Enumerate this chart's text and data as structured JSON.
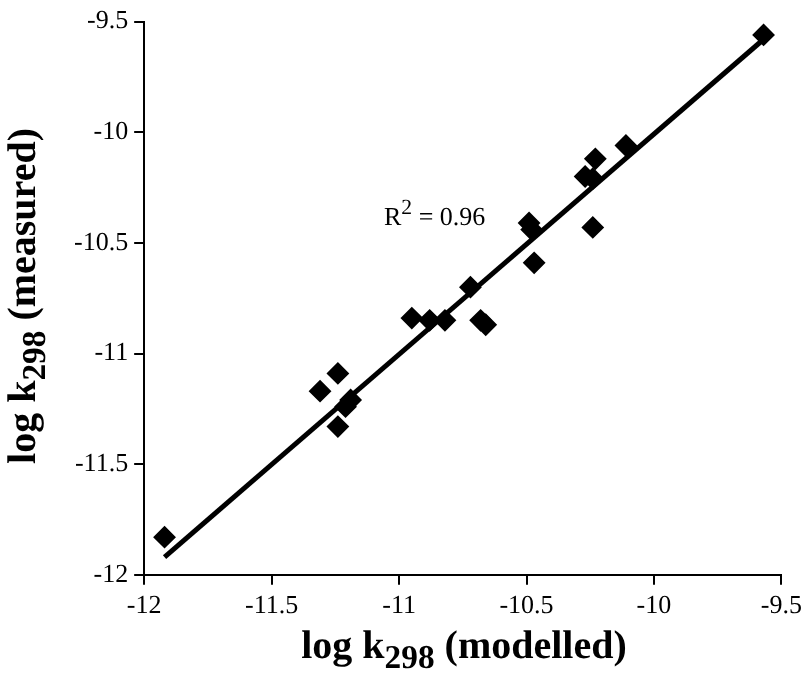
{
  "chart_data": {
    "type": "scatter",
    "xlabel": "log k$_{298}$ (modelled)",
    "ylabel": "log k$_{298}$ (measured)",
    "x": [
      -9.57,
      -10.11,
      -10.23,
      -10.27,
      -10.24,
      -10.24,
      -10.49,
      -10.48,
      -10.47,
      -10.72,
      -10.95,
      -10.88,
      -10.82,
      -10.68,
      -10.66,
      -11.24,
      -11.31,
      -11.19,
      -11.21,
      -11.24,
      -11.92
    ],
    "series": [
      {
        "color": "#000000",
        "marker": "diamond",
        "values": [
          -9.56,
          -10.06,
          -10.12,
          -10.2,
          -10.21,
          -10.43,
          -10.41,
          -10.44,
          -10.59,
          -10.7,
          -10.84,
          -10.85,
          -10.85,
          -10.85,
          -10.87,
          -11.09,
          -11.17,
          -11.21,
          -11.24,
          -11.33,
          -11.83
        ]
      },
      {
        "type": "line",
        "color": "#000000",
        "marker": "none",
        "x": [
          -11.92,
          -9.58
        ],
        "values": [
          -11.92,
          -9.59
        ]
      }
    ],
    "xlim": [
      -12,
      -9.5
    ],
    "xticks": [
      -12,
      -11.5,
      -11,
      -10.5,
      -10,
      -9.5
    ],
    "ylim": [
      -12,
      -9.5
    ],
    "yticks": [
      -12,
      -11.5,
      -11,
      -10.5,
      -10,
      -9.5
    ],
    "annotations": [
      "R$^{2}$ = 0.96"
    ],
    "grid": false,
    "legend": false
  }
}
